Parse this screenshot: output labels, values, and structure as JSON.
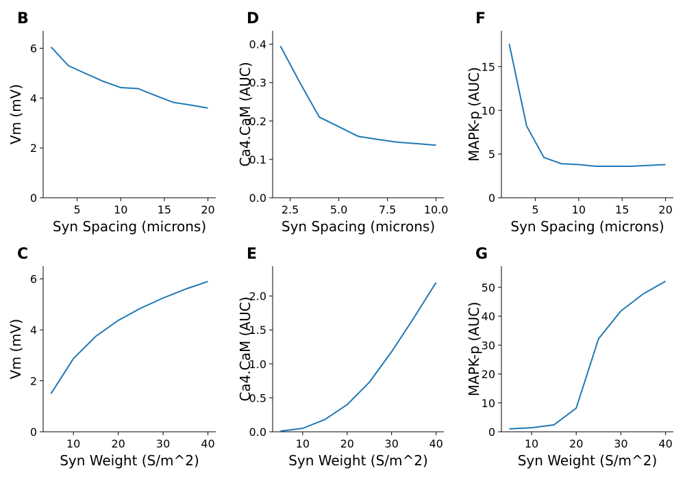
{
  "chart_data": [
    {
      "panel": "B",
      "type": "line",
      "xlabel": "Syn Spacing (microns)",
      "ylabel": "Vm (mV)",
      "xlim": [
        1.1,
        20.9
      ],
      "ylim": [
        0,
        6.7
      ],
      "xticks": [
        5,
        10,
        15,
        20
      ],
      "xtick_labels": [
        "5",
        "10",
        "15",
        "20"
      ],
      "yticks": [
        0,
        2,
        4,
        6
      ],
      "ytick_labels": [
        "0",
        "2",
        "4",
        "6"
      ],
      "x": [
        2,
        4,
        6,
        8,
        10,
        12,
        14,
        16,
        18,
        20
      ],
      "y": [
        6.05,
        5.3,
        4.98,
        4.67,
        4.42,
        4.38,
        4.1,
        3.83,
        3.72,
        3.6
      ],
      "color": "#1f77b4"
    },
    {
      "panel": "D",
      "type": "line",
      "xlabel": "Syn Spacing (microns)",
      "ylabel": "Ca4.CaM (AUC)",
      "xlim": [
        1.6,
        10.4
      ],
      "ylim": [
        0,
        0.435
      ],
      "xticks": [
        2.5,
        5.0,
        7.5,
        10.0
      ],
      "xtick_labels": [
        "2.5",
        "5.0",
        "7.5",
        "10.0"
      ],
      "yticks": [
        0,
        0.1,
        0.2,
        0.3,
        0.4
      ],
      "ytick_labels": [
        "0.0",
        "0.1",
        "0.2",
        "0.3",
        "0.4"
      ],
      "x": [
        2,
        3,
        4,
        5,
        6,
        7,
        8,
        9,
        10
      ],
      "y": [
        0.395,
        0.3,
        0.21,
        0.185,
        0.16,
        0.152,
        0.145,
        0.141,
        0.137
      ],
      "color": "#1f77b4"
    },
    {
      "panel": "F",
      "type": "line",
      "xlabel": "Syn Spacing (microns)",
      "ylabel": "MAPK-p (AUC)",
      "xlim": [
        1.1,
        20.9
      ],
      "ylim": [
        0,
        19.1
      ],
      "xticks": [
        5,
        10,
        15,
        20
      ],
      "xtick_labels": [
        "5",
        "10",
        "15",
        "20"
      ],
      "yticks": [
        0,
        5,
        10,
        15
      ],
      "ytick_labels": [
        "0",
        "5",
        "10",
        "15"
      ],
      "x": [
        2,
        4,
        6,
        8,
        10,
        12,
        14,
        16,
        18,
        20
      ],
      "y": [
        17.6,
        8.2,
        4.6,
        3.9,
        3.8,
        3.6,
        3.6,
        3.6,
        3.7,
        3.8
      ],
      "color": "#1f77b4"
    },
    {
      "panel": "C",
      "type": "line",
      "xlabel": "Syn Weight (S/m^2)",
      "ylabel": "Vm (mV)",
      "xlim": [
        3.25,
        41.75
      ],
      "ylim": [
        0,
        6.5
      ],
      "xticks": [
        10,
        20,
        30,
        40
      ],
      "xtick_labels": [
        "10",
        "20",
        "30",
        "40"
      ],
      "yticks": [
        0,
        2,
        4,
        6
      ],
      "ytick_labels": [
        "0",
        "2",
        "4",
        "6"
      ],
      "x": [
        5,
        10,
        15,
        20,
        25,
        30,
        35,
        40
      ],
      "y": [
        1.5,
        2.87,
        3.75,
        4.37,
        4.85,
        5.25,
        5.6,
        5.9
      ],
      "color": "#1f77b4"
    },
    {
      "panel": "E",
      "type": "line",
      "xlabel": "Syn Weight (S/m^2)",
      "ylabel": "Ca4.CaM (AUC)",
      "xlim": [
        3.25,
        41.75
      ],
      "ylim": [
        0,
        2.44
      ],
      "xticks": [
        10,
        20,
        30,
        40
      ],
      "xtick_labels": [
        "10",
        "20",
        "30",
        "40"
      ],
      "yticks": [
        0,
        0.5,
        1.0,
        1.5,
        2.0
      ],
      "ytick_labels": [
        "0.0",
        "0.5",
        "1.0",
        "1.5",
        "2.0"
      ],
      "x": [
        5,
        10,
        15,
        20,
        25,
        30,
        35,
        40
      ],
      "y": [
        0.01,
        0.05,
        0.18,
        0.4,
        0.73,
        1.18,
        1.68,
        2.2
      ],
      "color": "#1f77b4"
    },
    {
      "panel": "G",
      "type": "line",
      "xlabel": "Syn Weight (S/m^2)",
      "ylabel": "MAPK-p (AUC)",
      "xlim": [
        3.25,
        41.75
      ],
      "ylim": [
        0,
        57.3
      ],
      "xticks": [
        10,
        20,
        30,
        40
      ],
      "xtick_labels": [
        "10",
        "20",
        "30",
        "40"
      ],
      "yticks": [
        0,
        10,
        20,
        30,
        40,
        50
      ],
      "ytick_labels": [
        "0",
        "10",
        "20",
        "30",
        "40",
        "50"
      ],
      "x": [
        5,
        10,
        15,
        20,
        25,
        30,
        35,
        40
      ],
      "y": [
        1.0,
        1.4,
        2.4,
        8.2,
        32.2,
        41.8,
        47.7,
        52.1
      ],
      "color": "#1f77b4"
    }
  ]
}
